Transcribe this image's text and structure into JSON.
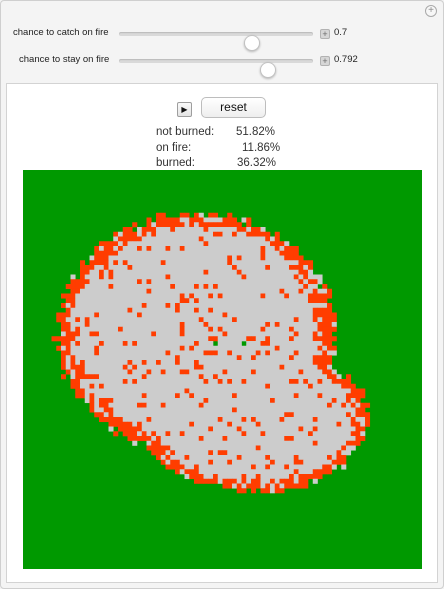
{
  "controls": [
    {
      "label": "chance to catch on fire",
      "value": "0.7",
      "fraction": 0.7
    },
    {
      "label": "chance to stay on fire",
      "value": "0.792",
      "fraction": 0.792
    }
  ],
  "buttons": {
    "play_glyph": "▶",
    "reset_label": "reset"
  },
  "stats": [
    {
      "label": "not burned:",
      "value": "51.82%"
    },
    {
      "label": "on fire:",
      "value": "11.86%"
    },
    {
      "label": "burned:",
      "value": "36.32%"
    }
  ],
  "simulation": {
    "grid_cells": 84,
    "colors": {
      "unburned": "#009900",
      "burning": "#ff3d00",
      "burned": "#cccccc"
    },
    "unburned_inside": [
      [
        36,
        40
      ],
      [
        36,
        46
      ]
    ]
  },
  "icons": {
    "corner": "plus-circle-icon",
    "value_toggle": "plus-box-icon"
  }
}
